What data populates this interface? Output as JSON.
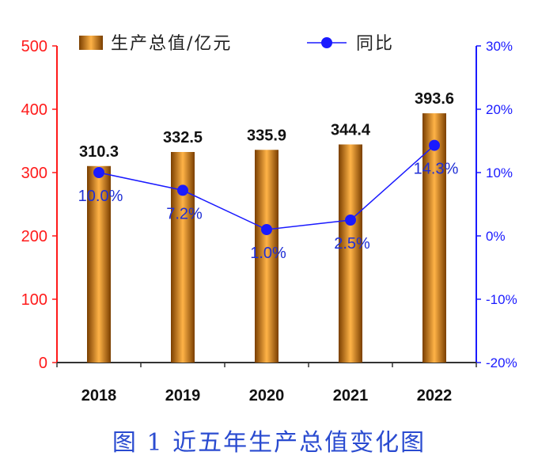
{
  "chart_data": {
    "type": "bar+line",
    "categories": [
      "2018",
      "2019",
      "2020",
      "2021",
      "2022"
    ],
    "series": [
      {
        "name": "生产总值/亿元",
        "type": "bar",
        "axis": "left",
        "values": [
          310.3,
          332.5,
          335.9,
          344.4,
          393.6
        ],
        "data_labels": [
          "310.3",
          "332.5",
          "335.9",
          "344.4",
          "393.6"
        ]
      },
      {
        "name": "同比",
        "type": "line",
        "axis": "right",
        "values": [
          10.0,
          7.2,
          1.0,
          2.5,
          14.3
        ],
        "data_labels": [
          "10.0%",
          "7.2%",
          "1.0%",
          "2.5%",
          "14.3%"
        ]
      }
    ],
    "y_left": {
      "range": [
        0,
        500
      ],
      "ticks": [
        "0",
        "100",
        "200",
        "300",
        "400",
        "500"
      ],
      "color": "#ff1a1a"
    },
    "y_right": {
      "range": [
        -20,
        30
      ],
      "ticks": [
        "-20%",
        "-10%",
        "0%",
        "10%",
        "20%",
        "30%"
      ],
      "color": "#1a1aff"
    },
    "legend_position": "top",
    "grid": false,
    "colors": {
      "bar_light": "#ffb347",
      "bar_dark": "#7a3e00",
      "line": "#1a1aff",
      "label_line": "#1f2fd6"
    }
  },
  "caption": "图 1  近五年生产总值变化图"
}
